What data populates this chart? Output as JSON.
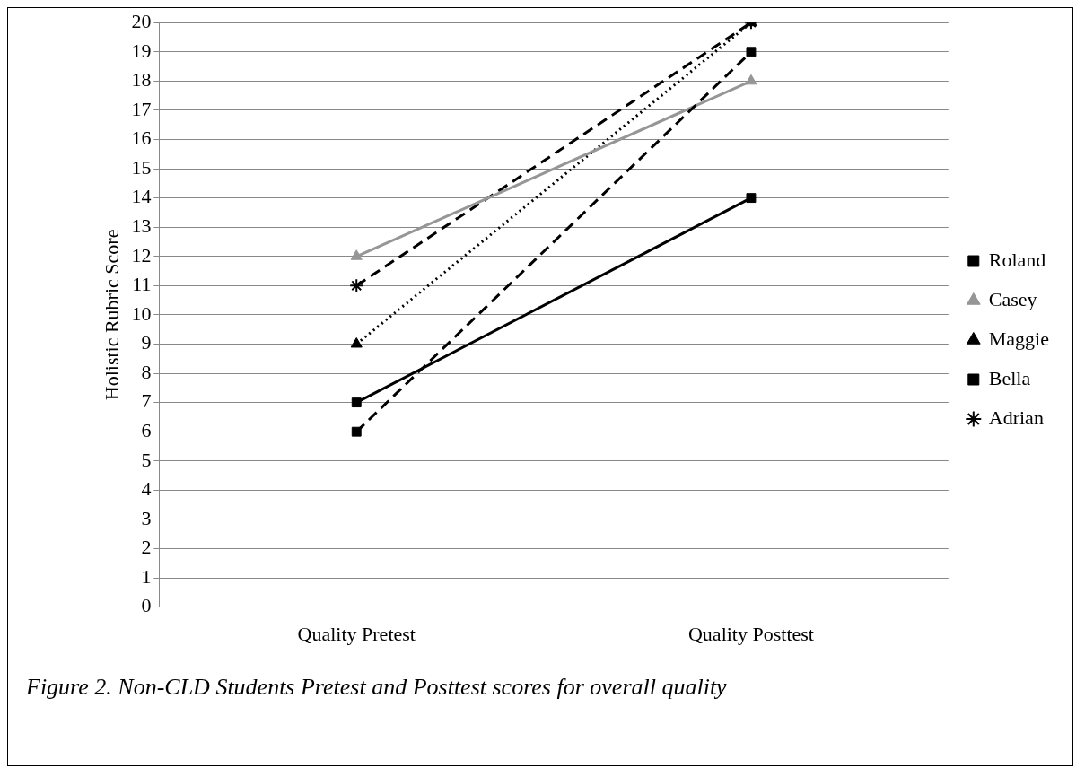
{
  "chart_data": {
    "type": "line",
    "ylabel": "Holistic Rubric Score",
    "categories": [
      "Quality Pretest",
      "Quality Posttest"
    ],
    "series": [
      {
        "name": "Roland",
        "color": "#000000",
        "values": [
          6,
          19
        ],
        "marker": "square",
        "line_style": "dashed"
      },
      {
        "name": "Casey",
        "color": "#969696",
        "values": [
          12,
          18
        ],
        "marker": "triangle",
        "line_style": "solid"
      },
      {
        "name": "Maggie",
        "color": "#000000",
        "values": [
          9,
          20
        ],
        "marker": "triangle",
        "line_style": "dotted"
      },
      {
        "name": "Bella",
        "color": "#000000",
        "values": [
          7,
          14
        ],
        "marker": "square",
        "line_style": "solid"
      },
      {
        "name": "Adrian",
        "color": "#000000",
        "values": [
          11,
          20
        ],
        "marker": "cross",
        "line_style": "dashed"
      }
    ],
    "ylim": [
      0,
      20
    ],
    "yticks": [
      0,
      1,
      2,
      3,
      4,
      5,
      6,
      7,
      8,
      9,
      10,
      11,
      12,
      13,
      14,
      15,
      16,
      17,
      18,
      19,
      20
    ],
    "grid": "y",
    "legend": "right",
    "annotations": [
      "Figure 2.  Non-CLD Students Pretest and Posttest scores for overall quality"
    ]
  }
}
